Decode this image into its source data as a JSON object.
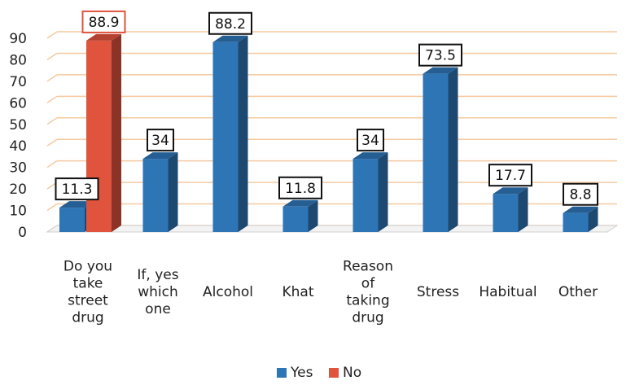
{
  "chart_data": {
    "type": "bar",
    "style": "3d-column",
    "categories": [
      [
        "Do you",
        "take",
        "street",
        "drug"
      ],
      [
        "If, yes",
        "which",
        "one"
      ],
      [
        "Alcohol"
      ],
      [
        "Khat"
      ],
      [
        "Reason",
        "of",
        "taking",
        "drug"
      ],
      [
        "Stress"
      ],
      [
        "Habitual"
      ],
      [
        "Other"
      ]
    ],
    "series": [
      {
        "name": "Yes",
        "color": "#2e75b6",
        "values": [
          11.3,
          34,
          88.2,
          11.8,
          34,
          73.5,
          17.7,
          8.8
        ]
      },
      {
        "name": "No",
        "color": "#e0533d",
        "values": [
          88.9,
          null,
          null,
          null,
          null,
          null,
          null,
          null
        ]
      }
    ],
    "ylim": [
      0,
      90
    ],
    "yticks": [
      0,
      10,
      20,
      30,
      40,
      50,
      60,
      70,
      80,
      90
    ],
    "grid": true,
    "grid_color": "#f5c9a0",
    "legend": {
      "position": "bottom-center",
      "entries": [
        "Yes",
        "No"
      ]
    }
  }
}
